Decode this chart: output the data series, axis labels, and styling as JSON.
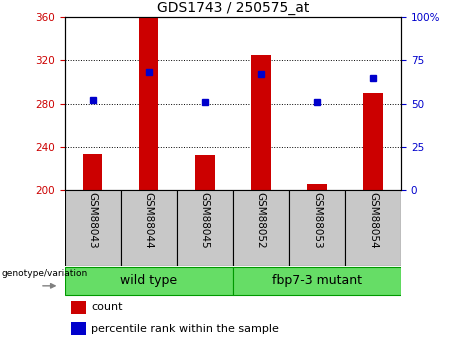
{
  "title": "GDS1743 / 250575_at",
  "samples": [
    "GSM88043",
    "GSM88044",
    "GSM88045",
    "GSM88052",
    "GSM88053",
    "GSM88054"
  ],
  "count_values": [
    233,
    360,
    232,
    325,
    205,
    290
  ],
  "percentile_values": [
    52,
    68,
    51,
    67,
    51,
    65
  ],
  "count_base": 200,
  "ylim_left": [
    200,
    360
  ],
  "ylim_right": [
    0,
    100
  ],
  "yticks_left": [
    200,
    240,
    280,
    320,
    360
  ],
  "yticks_right": [
    0,
    25,
    50,
    75,
    100
  ],
  "bar_color": "#cc0000",
  "dot_color": "#0000cc",
  "bar_width": 0.35,
  "title_fontsize": 10,
  "tick_fontsize": 7.5,
  "label_fontsize": 7.5,
  "group_label_fontsize": 9,
  "legend_fontsize": 8,
  "left_tick_color": "#cc0000",
  "right_tick_color": "#0000cc",
  "sample_bg_color": "#c8c8c8",
  "group_bg_color": "#66dd66",
  "group_border_color": "#009900",
  "wild_type_indices": [
    0,
    1,
    2
  ],
  "mutant_indices": [
    3,
    4,
    5
  ],
  "wild_type_label": "wild type",
  "mutant_label": "fbp7-3 mutant"
}
